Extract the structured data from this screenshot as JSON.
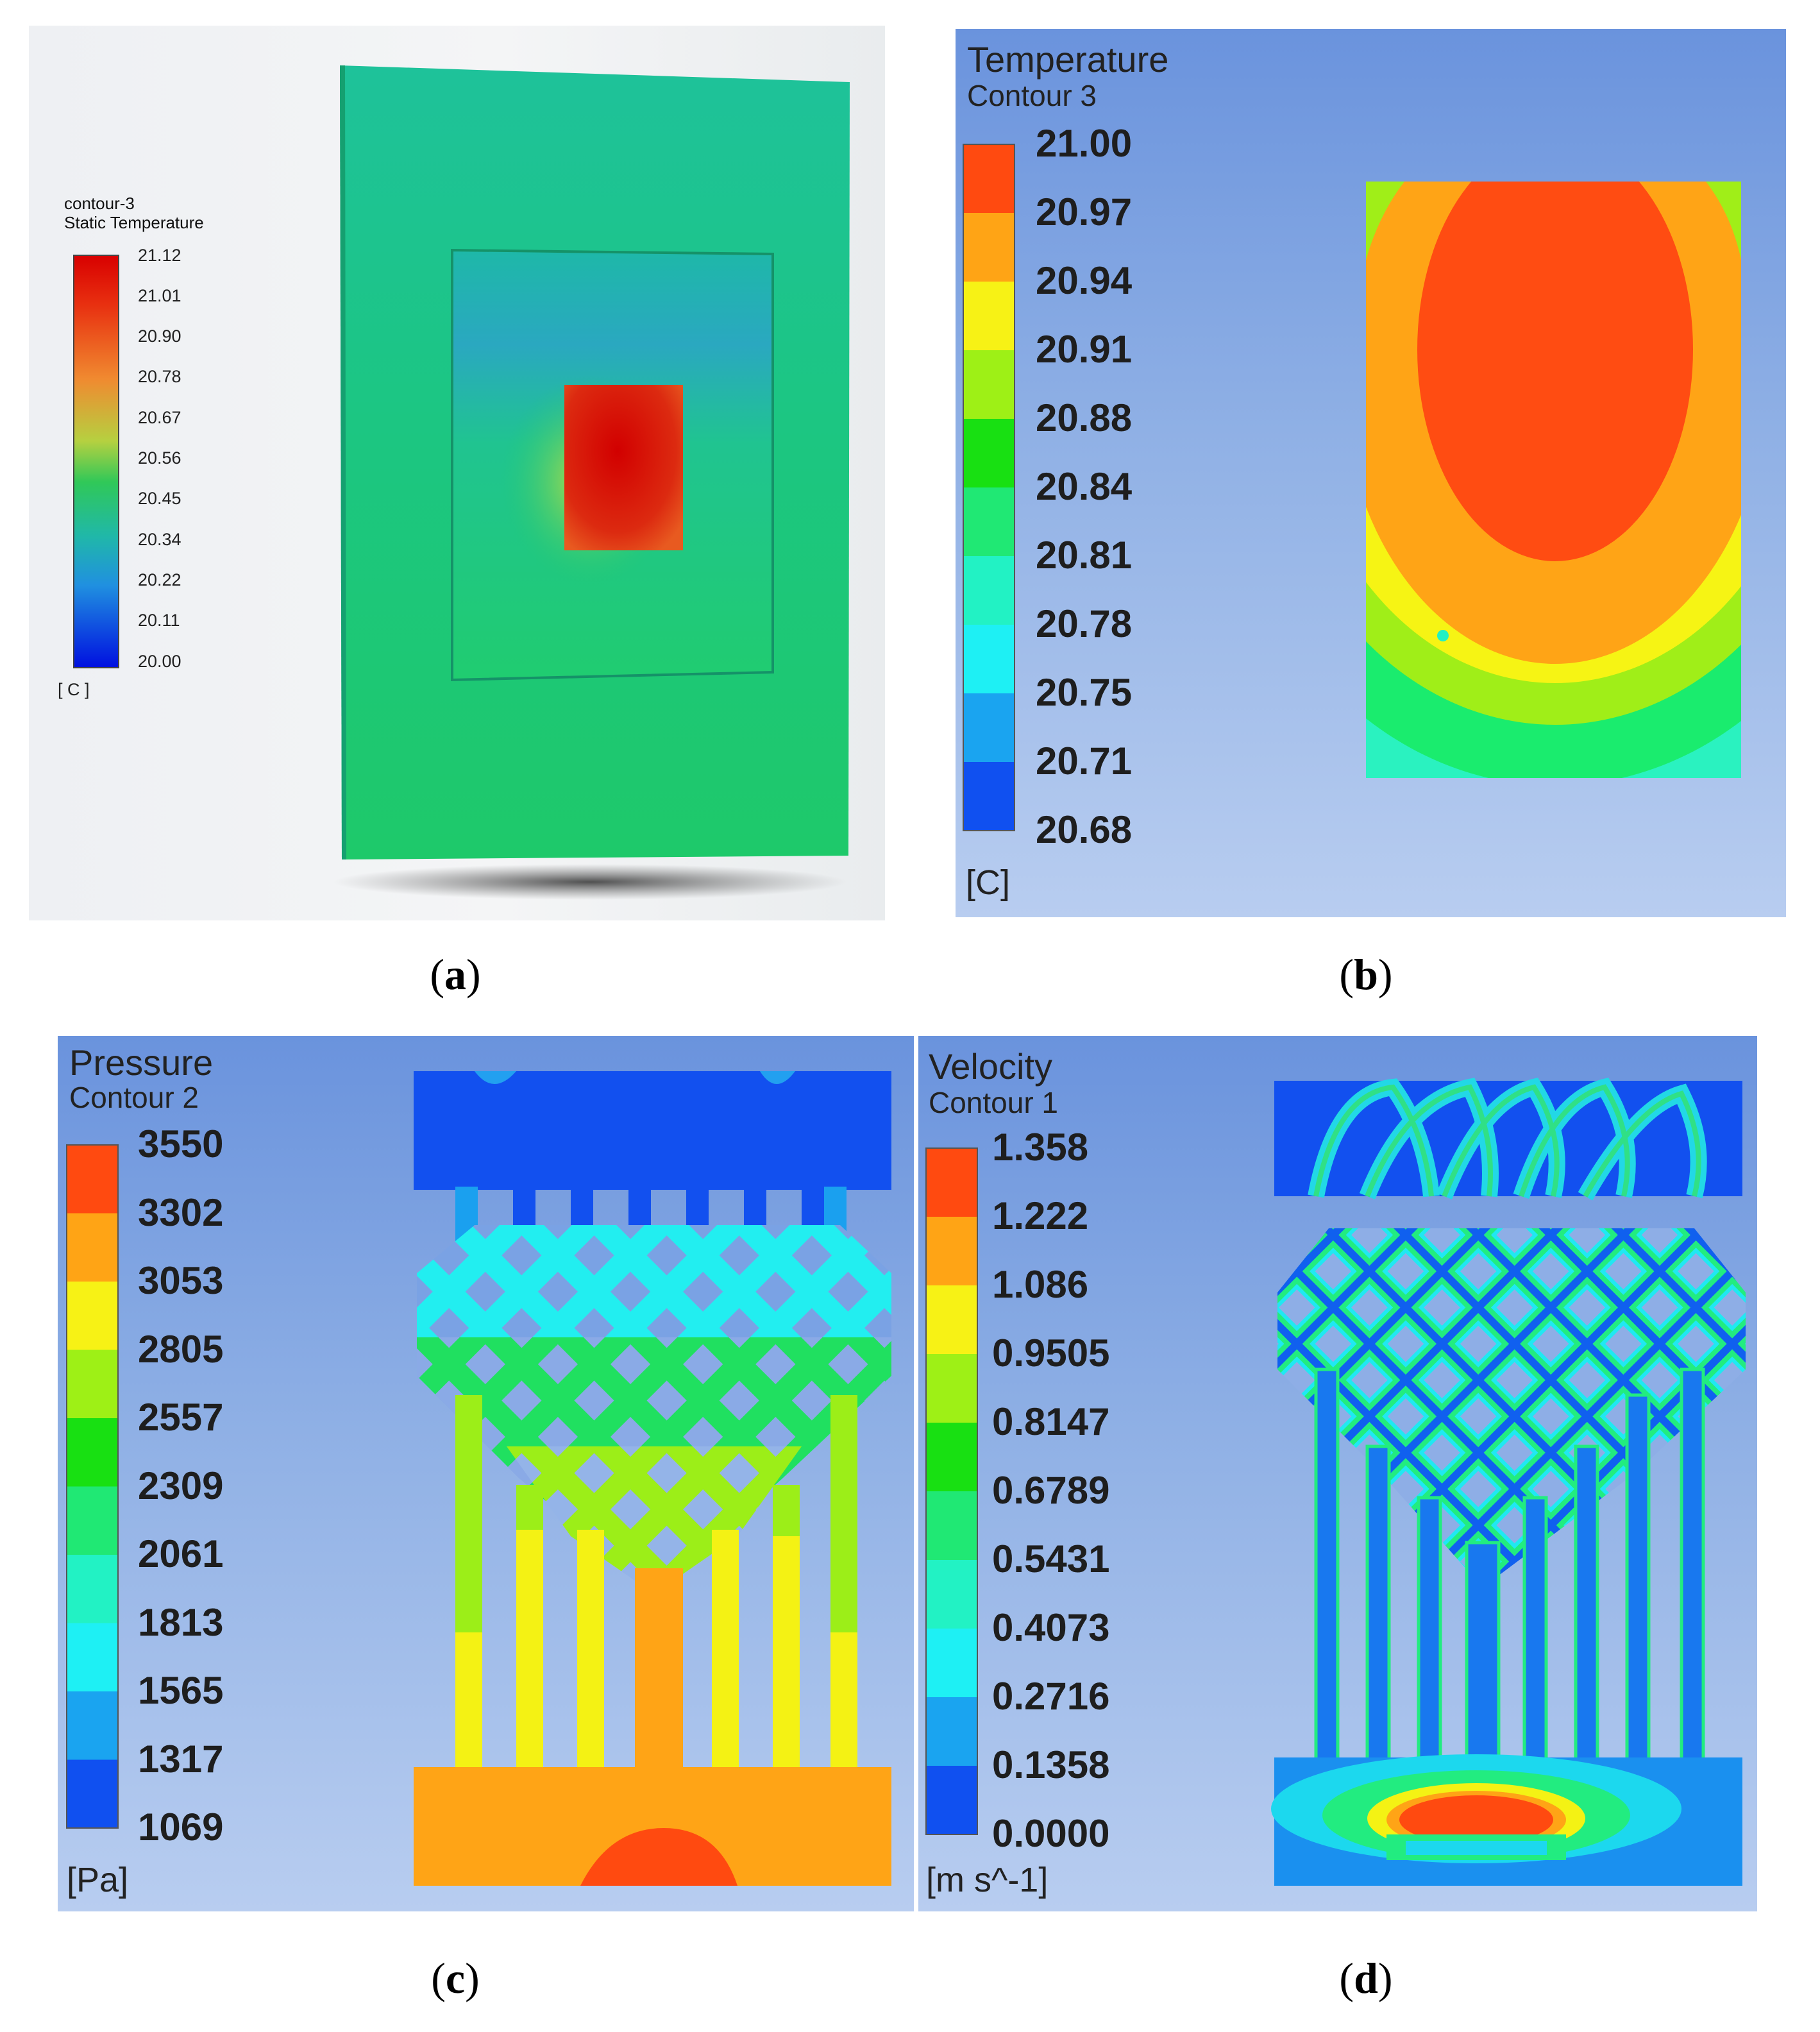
{
  "panel_a": {
    "caption": "a",
    "legend_title_1": "contour-3",
    "legend_title_2": "Static Temperature",
    "ticks": [
      "21.12",
      "21.01",
      "20.90",
      "20.78",
      "20.67",
      "20.56",
      "20.45",
      "20.34",
      "20.22",
      "20.11",
      "20.00"
    ],
    "unit": "[ C ]"
  },
  "panel_b": {
    "caption": "b",
    "title": "Temperature",
    "subtitle": "Contour 3",
    "ticks": [
      "21.00",
      "20.97",
      "20.94",
      "20.91",
      "20.88",
      "20.84",
      "20.81",
      "20.78",
      "20.75",
      "20.71",
      "20.68"
    ],
    "unit": "[C]"
  },
  "panel_c": {
    "caption": "c",
    "title": "Pressure",
    "subtitle": "Contour 2",
    "ticks": [
      "3550",
      "3302",
      "3053",
      "2805",
      "2557",
      "2309",
      "2061",
      "1813",
      "1565",
      "1317",
      "1069"
    ],
    "unit": "[Pa]"
  },
  "panel_d": {
    "caption": "d",
    "title": "Velocity",
    "subtitle": "Contour 1",
    "ticks": [
      "1.358",
      "1.222",
      "1.086",
      "0.9505",
      "0.8147",
      "0.6789",
      "0.5431",
      "0.4073",
      "0.2716",
      "0.1358",
      "0.0000"
    ],
    "unit": "[m s^-1]"
  },
  "colors": {
    "band_colors": [
      "#ff4a10",
      "#ffa415",
      "#f7f215",
      "#9ef016",
      "#18e012",
      "#20e874",
      "#22f2c4",
      "#1ef0f4",
      "#1aa4f0",
      "#1050f0"
    ],
    "smooth_scale": [
      "#ff1010",
      "#ff7a10",
      "#ffd020",
      "#b8f020",
      "#36e040",
      "#1ad088",
      "#10b8d0",
      "#1070f0",
      "#0a18e8"
    ]
  }
}
